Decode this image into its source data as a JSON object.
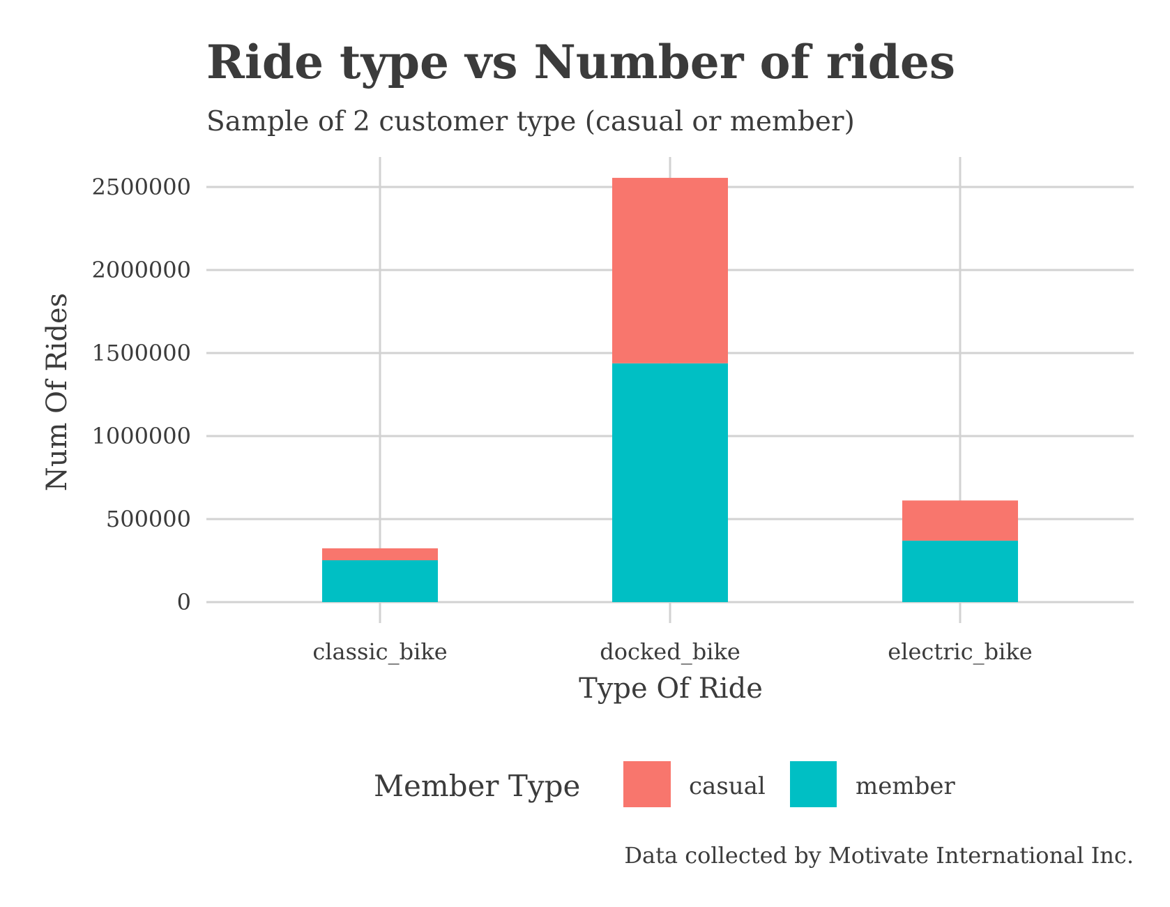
{
  "colors": {
    "casual": "#F8766D",
    "member": "#00BFC4",
    "grid": "#d2d2d2",
    "text": "#3b3b3b"
  },
  "chart_data": {
    "type": "bar",
    "stacked": true,
    "title": "Ride type vs Number of rides",
    "subtitle": "Sample of 2 customer type (casual or member)",
    "xlabel": "Type Of Ride",
    "ylabel": "Num Of Rides",
    "categories": [
      "classic_bike",
      "docked_bike",
      "electric_bike"
    ],
    "series": [
      {
        "name": "member",
        "values": [
          252000,
          1438000,
          370000
        ]
      },
      {
        "name": "casual",
        "values": [
          72000,
          1117000,
          242000
        ]
      }
    ],
    "ylim": [
      0,
      2650000
    ],
    "yticks": [
      0,
      500000,
      1000000,
      1500000,
      2000000,
      2500000
    ],
    "ytick_labels": [
      "0",
      "500000",
      "1000000",
      "1500000",
      "2000000",
      "2500000"
    ],
    "grid": true,
    "legend": {
      "title": "Member Type",
      "position": "bottom",
      "entries": [
        "casual",
        "member"
      ]
    },
    "caption": "Data collected by Motivate International Inc."
  }
}
